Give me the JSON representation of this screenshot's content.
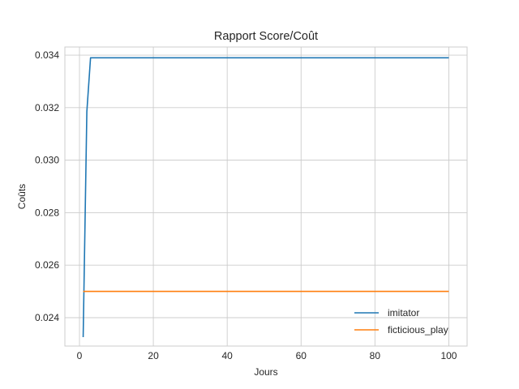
{
  "chart_data": {
    "type": "line",
    "title": "Rapport Score/Coût",
    "xlabel": "Jours",
    "ylabel": "Coûts",
    "xlim": [
      -3.95,
      104.95
    ],
    "ylim": [
      0.02292,
      0.03431
    ],
    "xticks": [
      0,
      20,
      40,
      60,
      80,
      100
    ],
    "yticks": [
      0.024,
      0.026,
      0.028,
      0.03,
      0.032,
      0.034
    ],
    "ytick_labels": [
      "0.024",
      "0.026",
      "0.028",
      "0.030",
      "0.032",
      "0.034"
    ],
    "grid": true,
    "legend_position": "lower right",
    "series": [
      {
        "name": "imitator",
        "color": "#1f77b4",
        "x": [
          1,
          2,
          3,
          100
        ],
        "y": [
          0.02326,
          0.03185,
          0.0339,
          0.0339
        ]
      },
      {
        "name": "ficticious_play",
        "color": "#ff7f0e",
        "x": [
          1,
          100
        ],
        "y": [
          0.025,
          0.025
        ]
      }
    ]
  }
}
